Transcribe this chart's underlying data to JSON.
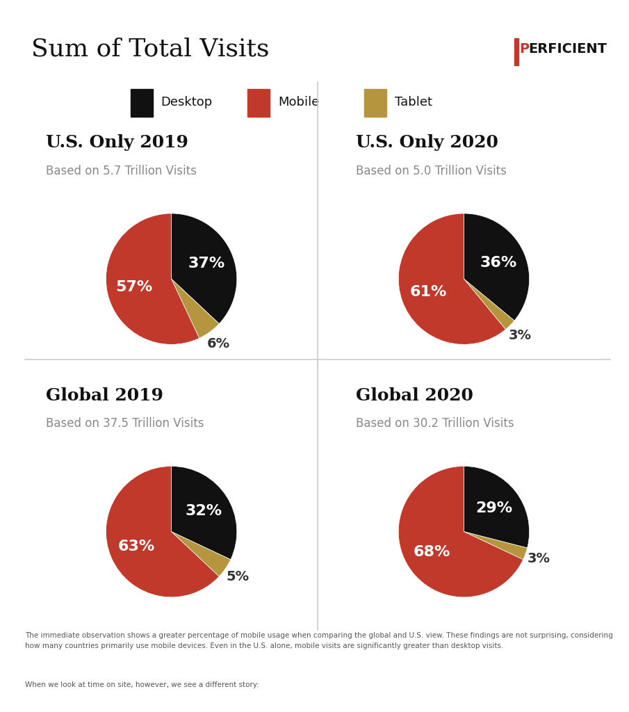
{
  "title": "Sum of Total Visits",
  "background_color": "#ffffff",
  "colors": {
    "desktop": "#111111",
    "mobile": "#c0392b",
    "tablet": "#b5963e"
  },
  "legend": [
    "Desktop",
    "Mobile",
    "Tablet"
  ],
  "charts": [
    {
      "title": "U.S. Only 2019",
      "subtitle": "Based on 5.7 Trillion Visits",
      "values": [
        37,
        57,
        6
      ],
      "labels": [
        "37%",
        "57%",
        "6%"
      ]
    },
    {
      "title": "U.S. Only 2020",
      "subtitle": "Based on 5.0 Trillion Visits",
      "values": [
        36,
        61,
        3
      ],
      "labels": [
        "36%",
        "61%",
        "3%"
      ]
    },
    {
      "title": "Global 2019",
      "subtitle": "Based on 37.5 Trillion Visits",
      "values": [
        32,
        63,
        5
      ],
      "labels": [
        "32%",
        "63%",
        "5%"
      ]
    },
    {
      "title": "Global 2020",
      "subtitle": "Based on 30.2 Trillion Visits",
      "values": [
        29,
        68,
        3
      ],
      "labels": [
        "29%",
        "68%",
        "3%"
      ]
    }
  ],
  "footer_text1": "The immediate observation shows a greater percentage of mobile usage when comparing the global and U.S. view. These findings are not surprising, considering how many countries primarily use mobile devices. Even in the U.S. alone, mobile visits are significantly greater than desktop visits.",
  "footer_text2": "When we look at time on site, however, we see a different story:",
  "divider_color": "#cccccc",
  "title_fontsize": 26,
  "chart_title_fontsize": 18,
  "chart_subtitle_fontsize": 12,
  "label_fontsize": 16,
  "footer_fontsize": 7.5,
  "legend_fontsize": 13,
  "title_color": "#111111",
  "subtitle_color": "#888888",
  "label_color_inside": "#ffffff",
  "label_color_outside": "#333333",
  "perficient_color_P": "#c0392b",
  "perficient_color_rest": "#111111"
}
